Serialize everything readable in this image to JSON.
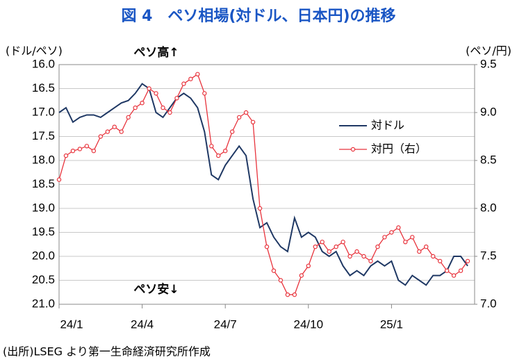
{
  "chart_data": {
    "type": "line",
    "title": "図 4　ペソ相場(対ドル、日本円)の推移",
    "y_axis_label": "(ドル/ペソ)",
    "y2_axis_label": "(ペソ/円)",
    "annotations": [
      "ペソ高↑",
      "ペソ安↓"
    ],
    "source": "(出所)LSEG より第一生命経済研究所作成",
    "xlim": [
      0,
      15
    ],
    "xticks": [
      {
        "value": 0,
        "label": "24/1"
      },
      {
        "value": 3,
        "label": "24/4"
      },
      {
        "value": 6,
        "label": "24/7"
      },
      {
        "value": 9,
        "label": "24/10"
      },
      {
        "value": 12,
        "label": "25/1"
      }
    ],
    "ylim": [
      16.0,
      21.0
    ],
    "y_inverted": true,
    "yticks": [
      {
        "value": 16,
        "label": "16.0"
      },
      16.5,
      {
        "value": 17,
        "label": "17.0"
      },
      17.5,
      {
        "value": 18,
        "label": "18.0"
      },
      18.5,
      {
        "value": 19,
        "label": "19.0"
      },
      19.5,
      {
        "value": 20,
        "label": "20.0"
      },
      20.5,
      {
        "value": 21,
        "label": "21.0"
      }
    ],
    "y2lim": [
      7.0,
      9.5
    ],
    "y2ticks": [
      {
        "value": 7,
        "label": "7.0"
      },
      7.5,
      {
        "value": 8,
        "label": "8.0"
      },
      8.5,
      {
        "value": 9,
        "label": "9.0"
      },
      9.5
    ],
    "grid": true,
    "x": [
      0,
      0.25,
      0.5,
      0.75,
      1,
      1.25,
      1.5,
      1.75,
      2,
      2.25,
      2.5,
      2.75,
      3,
      3.25,
      3.5,
      3.75,
      4,
      4.25,
      4.5,
      4.75,
      5,
      5.25,
      5.5,
      5.75,
      6,
      6.25,
      6.5,
      6.75,
      7,
      7.25,
      7.5,
      7.75,
      8,
      8.25,
      8.5,
      8.75,
      9,
      9.25,
      9.5,
      9.75,
      10,
      10.25,
      10.5,
      10.75,
      11,
      11.25,
      11.5,
      11.75,
      12,
      12.25,
      12.5,
      12.75,
      13,
      13.25,
      13.5,
      13.75,
      14,
      14.25,
      14.5,
      14.75
    ],
    "series": [
      {
        "name": "対ドル",
        "color": "#1f3864",
        "axis": "y",
        "markers": false,
        "values": [
          17.0,
          16.9,
          17.2,
          17.1,
          17.05,
          17.05,
          17.1,
          17.0,
          16.9,
          16.8,
          16.75,
          16.6,
          16.4,
          16.5,
          17.0,
          17.1,
          16.9,
          16.7,
          16.6,
          16.7,
          16.9,
          17.4,
          18.3,
          18.4,
          18.1,
          17.9,
          17.7,
          17.9,
          18.8,
          19.4,
          19.3,
          19.6,
          19.8,
          19.9,
          19.2,
          19.6,
          19.5,
          19.6,
          19.9,
          20.0,
          19.9,
          20.2,
          20.4,
          20.3,
          20.4,
          20.2,
          20.1,
          20.2,
          20.1,
          20.5,
          20.6,
          20.4,
          20.5,
          20.6,
          20.4,
          20.4,
          20.3,
          20.0,
          20.0,
          20.2
        ]
      },
      {
        "name": "対円（右）",
        "color": "#e8333c",
        "axis": "y2",
        "markers": true,
        "values": [
          8.3,
          8.55,
          8.6,
          8.62,
          8.65,
          8.6,
          8.75,
          8.8,
          8.85,
          8.8,
          8.95,
          9.05,
          9.1,
          9.25,
          9.2,
          9.05,
          9.0,
          9.15,
          9.3,
          9.35,
          9.4,
          9.2,
          8.65,
          8.55,
          8.6,
          8.8,
          8.95,
          9.0,
          8.9,
          8.0,
          7.6,
          7.35,
          7.25,
          7.1,
          7.1,
          7.3,
          7.4,
          7.6,
          7.65,
          7.55,
          7.6,
          7.65,
          7.5,
          7.55,
          7.5,
          7.45,
          7.6,
          7.7,
          7.75,
          7.8,
          7.65,
          7.7,
          7.55,
          7.6,
          7.5,
          7.45,
          7.35,
          7.3,
          7.35,
          7.45
        ]
      }
    ]
  }
}
